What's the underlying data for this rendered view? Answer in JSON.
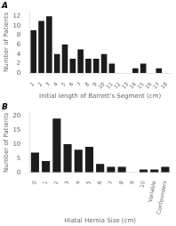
{
  "chart_data": [
    {
      "type": "bar",
      "title": "A",
      "categories": [
        "1",
        "2",
        "3",
        "4",
        "5",
        "6",
        "7",
        "8",
        "9",
        "10",
        "11",
        "12",
        "13",
        "14",
        "15",
        "16",
        "17",
        "18"
      ],
      "values": [
        9,
        11,
        12,
        4,
        6,
        3,
        5,
        3,
        3,
        4,
        2,
        0,
        0,
        1,
        2,
        0,
        1,
        0
      ],
      "color": "#1c1c1c",
      "xlabel": "Initial length of Barrett's Segment (cm)",
      "ylabel": "Number of Patients",
      "ylim": [
        0,
        13
      ],
      "yticks": [
        0,
        2,
        4,
        6,
        8,
        10,
        12
      ],
      "grid": false
    },
    {
      "type": "bar",
      "title": "B",
      "categories": [
        "0",
        "1",
        "2",
        "3",
        "4",
        "5",
        "6",
        "7",
        "8",
        "9",
        "10",
        "Variable",
        "Confounders"
      ],
      "values": [
        7,
        4,
        19,
        10,
        8,
        9,
        3,
        2,
        2,
        0,
        1,
        1,
        2
      ],
      "color": "#1c1c1c",
      "xlabel": "Hiatal Hernia Size (cm)",
      "ylabel": "Number of Patients",
      "ylim": [
        0,
        21
      ],
      "yticks": [
        0,
        5,
        10,
        15,
        20
      ],
      "grid": false
    }
  ]
}
